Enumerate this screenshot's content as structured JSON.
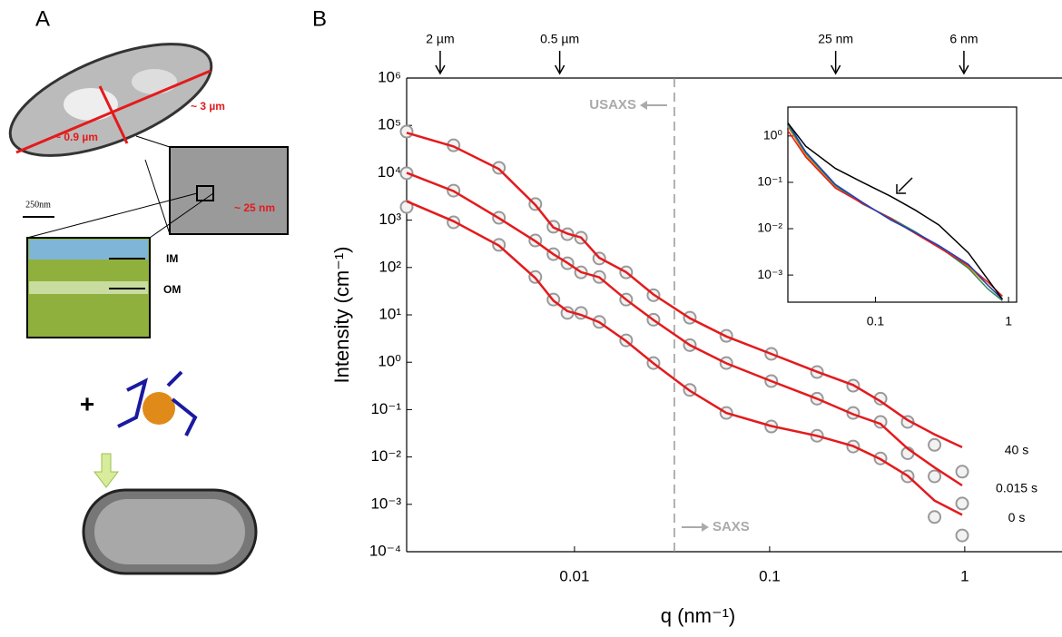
{
  "panel_a": {
    "label": "A",
    "length_label": "~ 3 µm",
    "width_label": "~ 0.9 µm",
    "wall_label": "~ 25 nm",
    "scale_bar": "250nm",
    "inner_membrane": "IM",
    "outer_membrane": "OM",
    "plus": "+"
  },
  "chart_data": [
    {
      "type": "scatter",
      "panel_label": "B",
      "xlabel": "q (nm⁻¹)",
      "ylabel": "Intensity (cm⁻¹)",
      "log_x": true,
      "log_y": true,
      "xlim": [
        0.00138,
        3.15
      ],
      "ylim": [
        0.0001,
        1000000
      ],
      "xticks": [
        0.01,
        0.1,
        1
      ],
      "yticks": [
        {
          "value": 0.0001,
          "label": "10⁻⁴"
        },
        {
          "value": 0.001,
          "label": "10⁻³"
        },
        {
          "value": 0.01,
          "label": "10⁻²"
        },
        {
          "value": 0.1,
          "label": "10⁻¹"
        },
        {
          "value": 1,
          "label": "10⁰"
        },
        {
          "value": 10,
          "label": "10¹"
        },
        {
          "value": 100,
          "label": "10²"
        },
        {
          "value": 1000,
          "label": "10³"
        },
        {
          "value": 10000,
          "label": "10⁴"
        },
        {
          "value": 100000,
          "label": "10⁵"
        },
        {
          "value": 1000000,
          "label": "10⁶"
        }
      ],
      "top_markers": [
        {
          "value": 0.00205,
          "label": "2 µm"
        },
        {
          "value": 0.0084,
          "label": "0.5 µm"
        },
        {
          "value": 0.218,
          "label": "25 nm"
        },
        {
          "value": 0.99,
          "label": "6 nm"
        }
      ],
      "divider_x": 0.0325,
      "left_annotation": "USAXS",
      "right_annotation": "SAXS",
      "marker_color": "#999999",
      "fit_color": "#e41a1c",
      "x": [
        0.00138,
        0.0024,
        0.0041,
        0.0063,
        0.0078,
        0.0092,
        0.0108,
        0.0134,
        0.0184,
        0.0254,
        0.039,
        0.06,
        0.102,
        0.175,
        0.268,
        0.37,
        0.51,
        0.7,
        0.97
      ],
      "series": [
        {
          "name": "40 s",
          "values": [
            74000,
            38000,
            12700,
            2180,
            724,
            505,
            425,
            155,
            79,
            26,
            8.7,
            3.6,
            1.5,
            0.62,
            0.32,
            0.17,
            0.055,
            0.018,
            0.0049
          ],
          "fit": [
            70000,
            36000,
            12000,
            2100,
            700,
            520,
            430,
            160,
            80,
            27,
            8.5,
            3.5,
            1.5,
            0.63,
            0.33,
            0.15,
            0.06,
            0.03,
            0.016
          ]
        },
        {
          "name": "0.015 s",
          "values": [
            9800,
            4200,
            1120,
            372,
            191,
            123,
            79,
            63,
            21,
            7.9,
            2.3,
            0.96,
            0.4,
            0.17,
            0.085,
            0.055,
            0.012,
            0.0039,
            0.00104
          ],
          "fit": [
            10000,
            4100,
            1100,
            360,
            190,
            125,
            80,
            62,
            21,
            7.8,
            2.3,
            0.95,
            0.4,
            0.17,
            0.08,
            0.05,
            0.015,
            0.006,
            0.0025
          ]
        },
        {
          "name": "0 s",
          "values": [
            1900,
            900,
            300,
            63,
            21,
            11,
            11,
            7.1,
            2.9,
            0.96,
            0.26,
            0.085,
            0.044,
            0.028,
            0.0166,
            0.0093,
            0.0039,
            0.00054,
            0.00022
          ],
          "fit": [
            2500,
            950,
            290,
            60,
            20,
            12,
            10,
            7,
            2.8,
            0.95,
            0.25,
            0.085,
            0.045,
            0.028,
            0.017,
            0.009,
            0.004,
            0.0012,
            0.0006
          ]
        }
      ]
    },
    {
      "type": "line",
      "log_x": true,
      "log_y": true,
      "xlim": [
        0.022,
        1.15
      ],
      "ylim": [
        0.00026,
        4.2
      ],
      "xticks": [
        0.1,
        1
      ],
      "yticks": [
        {
          "value": 0.001,
          "label": "10⁻³"
        },
        {
          "value": 0.01,
          "label": "10⁻²"
        },
        {
          "value": 0.1,
          "label": "10⁻¹"
        },
        {
          "value": 1,
          "label": "10⁰"
        }
      ],
      "x": [
        0.022,
        0.03,
        0.05,
        0.08,
        0.13,
        0.2,
        0.3,
        0.5,
        0.7,
        0.9
      ],
      "series": [
        {
          "color": "#ff8c00",
          "values": [
            1.6,
            0.38,
            0.08,
            0.036,
            0.016,
            0.008,
            0.0042,
            0.0015,
            0.0006,
            0.0003
          ]
        },
        {
          "color": "#2e8b57",
          "values": [
            1.7,
            0.42,
            0.085,
            0.034,
            0.017,
            0.0085,
            0.0041,
            0.0014,
            0.0005,
            0.00028
          ]
        },
        {
          "color": "#e41a1c",
          "values": [
            1.3,
            0.35,
            0.075,
            0.035,
            0.0165,
            0.0078,
            0.0039,
            0.0016,
            0.0007,
            0.00035
          ]
        },
        {
          "color": "#1f3fbf",
          "values": [
            1.9,
            0.45,
            0.09,
            0.037,
            0.0155,
            0.0082,
            0.0043,
            0.0017,
            0.0006,
            0.0003
          ]
        },
        {
          "color": "#000000",
          "values": [
            1.9,
            0.6,
            0.2,
            0.1,
            0.05,
            0.025,
            0.012,
            0.003,
            0.0008,
            0.0003
          ]
        }
      ]
    }
  ]
}
